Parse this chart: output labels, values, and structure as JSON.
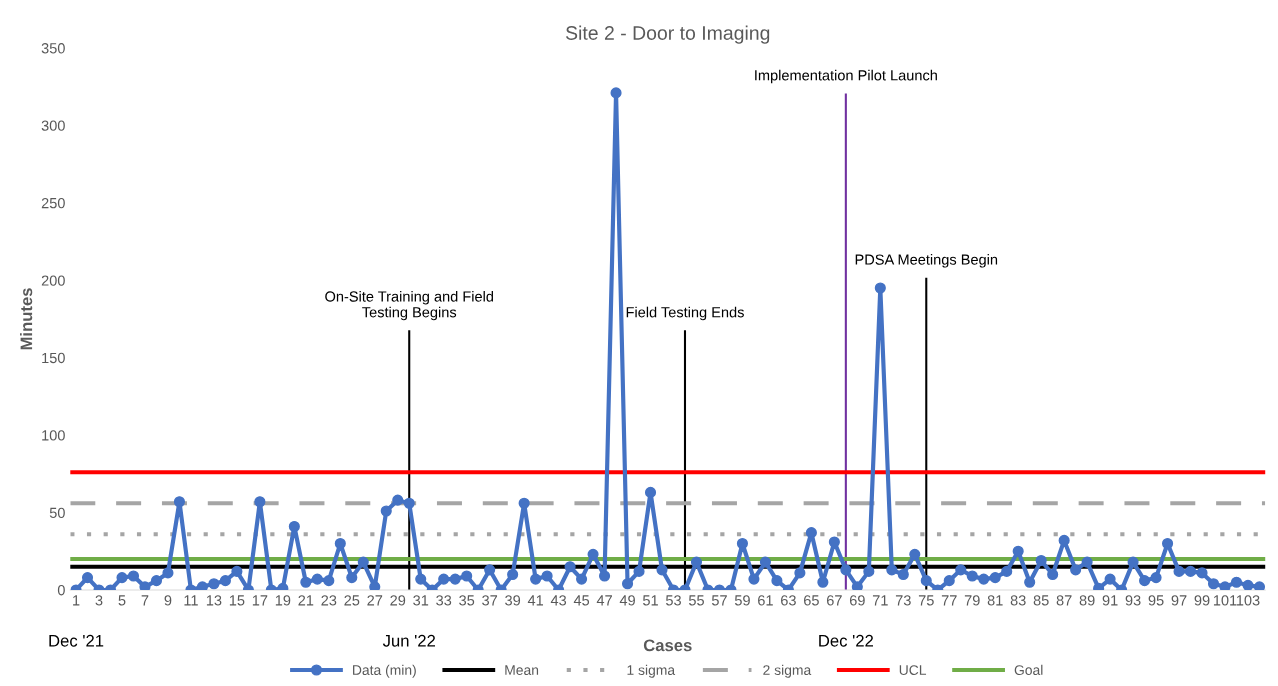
{
  "chart_data": {
    "type": "line",
    "title": "Site 2 - Door to Imaging",
    "xlabel": "Cases",
    "ylabel": "Minutes",
    "x": [
      1,
      2,
      3,
      4,
      5,
      6,
      7,
      8,
      9,
      10,
      11,
      12,
      13,
      14,
      15,
      16,
      17,
      18,
      19,
      20,
      21,
      22,
      23,
      24,
      25,
      26,
      27,
      28,
      29,
      30,
      31,
      32,
      33,
      34,
      35,
      36,
      37,
      38,
      39,
      40,
      41,
      42,
      43,
      44,
      45,
      46,
      47,
      48,
      49,
      50,
      51,
      52,
      53,
      54,
      55,
      56,
      57,
      58,
      59,
      60,
      61,
      62,
      63,
      64,
      65,
      66,
      67,
      68,
      69,
      70,
      71,
      72,
      73,
      74,
      75,
      76,
      77,
      78,
      79,
      80,
      81,
      82,
      83,
      84,
      85,
      86,
      87,
      88,
      89,
      90,
      91,
      92,
      93,
      94,
      95,
      96,
      97,
      98,
      99,
      100,
      101,
      102,
      103,
      104
    ],
    "series": [
      {
        "name": "Data (min)",
        "color": "#4472c4",
        "marker": "circle",
        "values": [
          0,
          8,
          0,
          0,
          8,
          9,
          2,
          6,
          11,
          57,
          0,
          2,
          4,
          6,
          12,
          0,
          57,
          0,
          1,
          41,
          5,
          7,
          6,
          30,
          8,
          18,
          2,
          51,
          58,
          56,
          7,
          0,
          7,
          7,
          9,
          0,
          13,
          0,
          10,
          56,
          7,
          9,
          0,
          15,
          7,
          23,
          9,
          321,
          4,
          12,
          63,
          13,
          0,
          0,
          18,
          0,
          0,
          0,
          30,
          7,
          18,
          6,
          0,
          11,
          37,
          5,
          31,
          13,
          2,
          12,
          195,
          13,
          10,
          23,
          6,
          0,
          6,
          13,
          9,
          7,
          8,
          12,
          25,
          5,
          19,
          10,
          32,
          13,
          18,
          1,
          7,
          0,
          18,
          6,
          8,
          30,
          12,
          12,
          11,
          4,
          2,
          5,
          3,
          2
        ]
      }
    ],
    "xlim": [
      0.5,
      104.5
    ],
    "xticks": [
      1,
      3,
      5,
      7,
      9,
      11,
      13,
      15,
      17,
      19,
      21,
      23,
      25,
      27,
      29,
      31,
      33,
      35,
      37,
      39,
      41,
      43,
      45,
      47,
      49,
      51,
      53,
      55,
      57,
      59,
      61,
      63,
      65,
      67,
      69,
      71,
      73,
      75,
      77,
      79,
      81,
      83,
      85,
      87,
      89,
      91,
      93,
      95,
      97,
      99,
      101,
      103
    ],
    "ylim": [
      0,
      350
    ],
    "yticks": [
      0,
      50,
      100,
      150,
      200,
      250,
      300,
      350
    ],
    "ref_lines": [
      {
        "axis": "y",
        "value": 15,
        "label": "Mean",
        "color": "#000000"
      },
      {
        "axis": "y",
        "value": 36,
        "label": "1 sigma",
        "color": "#a5a5a5",
        "line_style": "dotted"
      },
      {
        "axis": "y",
        "value": 56,
        "label": "2 sigma",
        "color": "#a5a5a5",
        "line_style": "dashed"
      },
      {
        "axis": "y",
        "value": 76,
        "label": "UCL",
        "color": "#ff0000"
      },
      {
        "axis": "y",
        "value": 20,
        "label": "Goal",
        "color": "#70ad47"
      },
      {
        "axis": "x",
        "value": 30,
        "color": "#000000"
      },
      {
        "axis": "x",
        "value": 54,
        "color": "#000000"
      },
      {
        "axis": "x",
        "value": 68,
        "color": "#7030a0"
      },
      {
        "axis": "x",
        "value": 75,
        "color": "#000000"
      }
    ],
    "annotations": [
      {
        "text": "On-Site Training and Field\nTesting Begins",
        "x": 30,
        "y": 167
      },
      {
        "text": "Field Testing Ends",
        "x": 54,
        "y": 167
      },
      {
        "text": "Implementation Pilot Launch",
        "x": 68,
        "y": 320
      },
      {
        "text": "PDSA Meetings Begin",
        "x": 75,
        "y": 201
      },
      {
        "text": "Dec '21",
        "x": 1,
        "y": 0
      },
      {
        "text": "Jun '22",
        "x": 30,
        "y": 0
      },
      {
        "text": "Dec '22",
        "x": 68,
        "y": 0
      }
    ],
    "legend": "bottom"
  }
}
